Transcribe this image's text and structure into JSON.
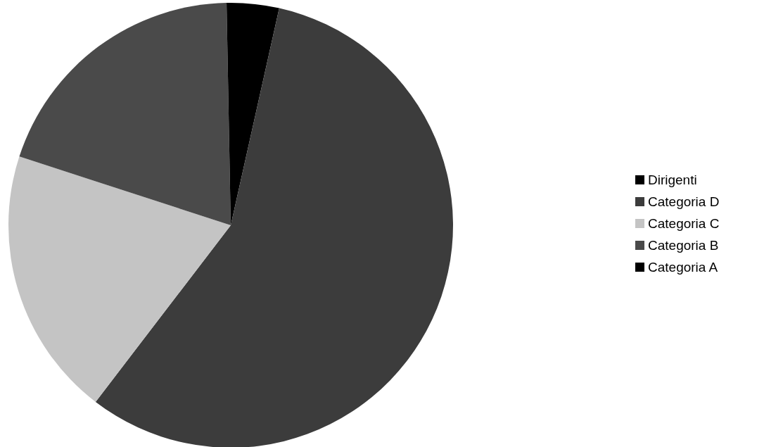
{
  "chart_data": {
    "type": "pie",
    "categories": [
      "Dirigenti",
      "Categoria D",
      "Categoria C",
      "Categoria B",
      "Categoria A"
    ],
    "values": [
      3.5,
      56.9,
      19.6,
      19.7,
      0.3
    ],
    "colors": [
      "#000000",
      "#3c3c3c",
      "#c4c4c4",
      "#4a4a4a",
      "#000000"
    ],
    "legend": "right"
  }
}
